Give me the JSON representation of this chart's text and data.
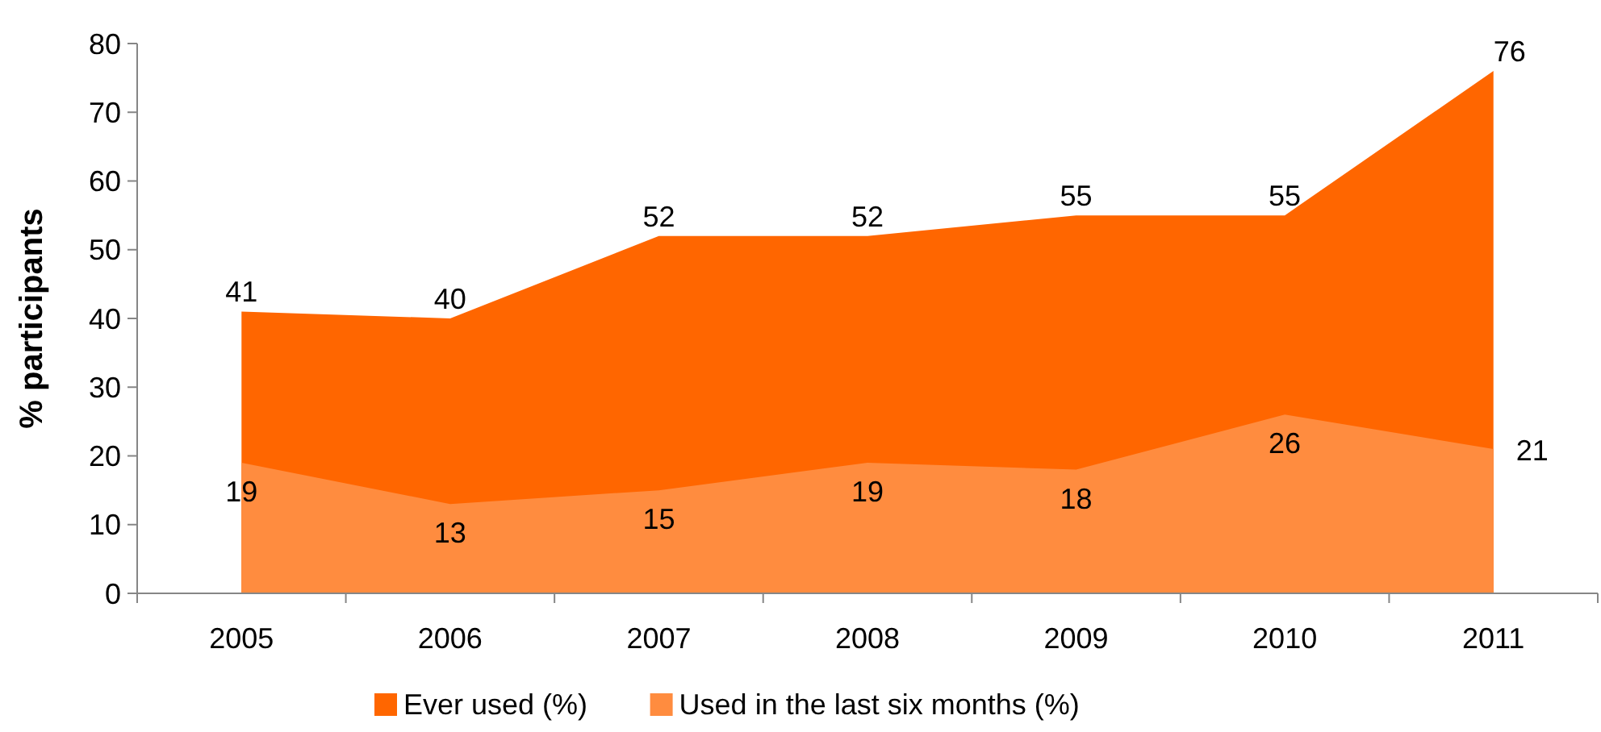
{
  "chart_data": {
    "type": "area",
    "ylabel": "% participants",
    "categories": [
      "2005",
      "2006",
      "2007",
      "2008",
      "2009",
      "2010",
      "2011"
    ],
    "series": [
      {
        "name": "Ever used (%)",
        "color": "#ff6600",
        "values": [
          41,
          40,
          52,
          52,
          55,
          55,
          76
        ]
      },
      {
        "name": "Used in the last six months (%)",
        "color": "#ff8c3f",
        "values": [
          19,
          13,
          15,
          19,
          18,
          26,
          21
        ]
      }
    ],
    "ylim": [
      0,
      80
    ],
    "yticks": [
      0,
      10,
      20,
      30,
      40,
      50,
      60,
      70,
      80
    ],
    "grid": false,
    "legend": "bottom",
    "data_labels": true
  }
}
